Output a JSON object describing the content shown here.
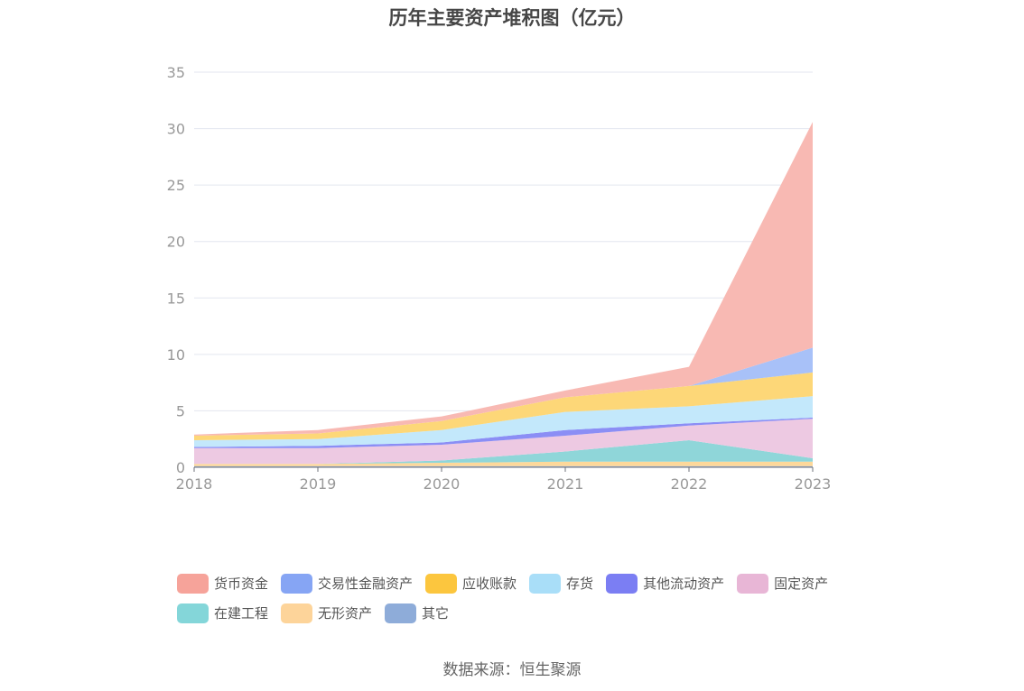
{
  "chart_data": {
    "type": "area",
    "title": "历年主要资产堆积图（亿元）",
    "x": [
      "2018",
      "2019",
      "2020",
      "2021",
      "2022",
      "2023"
    ],
    "ylim": [
      0,
      35
    ],
    "yticks": [
      "0",
      "5",
      "10",
      "15",
      "20",
      "25",
      "30",
      "35"
    ],
    "grid": true,
    "stacked": true,
    "legend_position": "bottom",
    "series": [
      {
        "name": "其它",
        "color": "#8eacd9",
        "values": [
          0.1,
          0.1,
          0.1,
          0.1,
          0.1,
          0.1
        ]
      },
      {
        "name": "无形资产",
        "color": "#fdd89a",
        "values": [
          0.2,
          0.2,
          0.3,
          0.4,
          0.4,
          0.4
        ]
      },
      {
        "name": "在建工程",
        "color": "#8fd6d9",
        "values": [
          0.0,
          0.0,
          0.2,
          0.9,
          1.9,
          0.3
        ]
      },
      {
        "name": "固定资产",
        "color": "#edc9e2",
        "values": [
          1.4,
          1.4,
          1.4,
          1.4,
          1.3,
          3.5
        ]
      },
      {
        "name": "其他流动资产",
        "color": "#8b8ef5",
        "values": [
          0.1,
          0.2,
          0.2,
          0.5,
          0.2,
          0.1
        ]
      },
      {
        "name": "存货",
        "color": "#c3e8fb",
        "values": [
          0.6,
          0.6,
          1.1,
          1.6,
          1.5,
          1.9
        ]
      },
      {
        "name": "应收账款",
        "color": "#fdd778",
        "values": [
          0.4,
          0.5,
          0.8,
          1.3,
          1.8,
          2.1
        ]
      },
      {
        "name": "交易性金融资产",
        "color": "#a8c1f8",
        "values": [
          0.0,
          0.0,
          0.0,
          0.0,
          0.0,
          2.2
        ]
      },
      {
        "name": "货币资金",
        "color": "#f8b9b3",
        "values": [
          0.1,
          0.3,
          0.4,
          0.6,
          1.7,
          20.0
        ]
      }
    ],
    "legend": [
      {
        "name": "货币资金",
        "color": "#f6a39a"
      },
      {
        "name": "交易性金融资产",
        "color": "#86a5f4"
      },
      {
        "name": "应收账款",
        "color": "#fcc63e"
      },
      {
        "name": "存货",
        "color": "#a9def8"
      },
      {
        "name": "其他流动资产",
        "color": "#7b7ef3"
      },
      {
        "name": "固定资产",
        "color": "#e8b6d6"
      },
      {
        "name": "在建工程",
        "color": "#84d6d9"
      },
      {
        "name": "无形资产",
        "color": "#fdd49a"
      },
      {
        "name": "其它",
        "color": "#8eacd9"
      }
    ]
  },
  "source": "数据来源：恒生聚源"
}
